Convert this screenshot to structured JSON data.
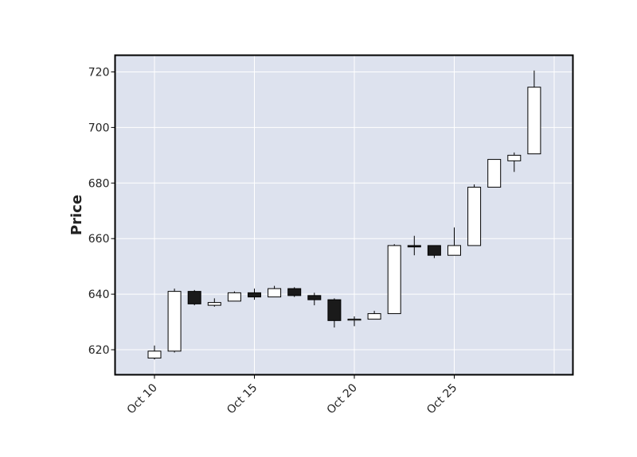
{
  "chart_data": {
    "type": "candlestick",
    "title": "",
    "xlabel": "",
    "ylabel": "Price",
    "ylim": [
      611,
      726
    ],
    "y_ticks": [
      620,
      640,
      660,
      680,
      700,
      720
    ],
    "x_ticks": [
      {
        "label": "Oct 10",
        "index": 0
      },
      {
        "label": "Oct 15",
        "index": 5
      },
      {
        "label": "Oct 20",
        "index": 10
      },
      {
        "label": "Oct 25",
        "index": 15
      }
    ],
    "grid": true,
    "colors": {
      "background": "#dde2ee",
      "grid": "#ffffff",
      "up_fill": "#ffffff",
      "down_fill": "#1a1a1a",
      "edge": "#000000"
    },
    "candles": [
      {
        "date": "Oct 10",
        "open": 617.0,
        "high": 621.5,
        "low": 616.5,
        "close": 619.5
      },
      {
        "date": "Oct 11",
        "open": 619.5,
        "high": 642.0,
        "low": 619.0,
        "close": 641.0
      },
      {
        "date": "Oct 12",
        "open": 641.0,
        "high": 641.5,
        "low": 636.0,
        "close": 636.5
      },
      {
        "date": "Oct 13",
        "open": 636.0,
        "high": 638.5,
        "low": 635.5,
        "close": 637.0
      },
      {
        "date": "Oct 14",
        "open": 637.5,
        "high": 641.0,
        "low": 637.5,
        "close": 640.5
      },
      {
        "date": "Oct 15",
        "open": 640.5,
        "high": 642.0,
        "low": 638.0,
        "close": 639.0
      },
      {
        "date": "Oct 16",
        "open": 639.0,
        "high": 643.0,
        "low": 639.0,
        "close": 642.0
      },
      {
        "date": "Oct 17",
        "open": 642.0,
        "high": 642.5,
        "low": 639.0,
        "close": 639.5
      },
      {
        "date": "Oct 18",
        "open": 639.5,
        "high": 640.5,
        "low": 636.0,
        "close": 638.0
      },
      {
        "date": "Oct 19",
        "open": 638.0,
        "high": 638.5,
        "low": 628.0,
        "close": 630.5
      },
      {
        "date": "Oct 20",
        "open": 631.0,
        "high": 632.0,
        "low": 628.5,
        "close": 631.0
      },
      {
        "date": "Oct 21",
        "open": 631.0,
        "high": 634.0,
        "low": 631.0,
        "close": 633.0
      },
      {
        "date": "Oct 22",
        "open": 633.0,
        "high": 658.0,
        "low": 633.0,
        "close": 657.5
      },
      {
        "date": "Oct 23",
        "open": 657.5,
        "high": 661.0,
        "low": 654.0,
        "close": 657.0
      },
      {
        "date": "Oct 24",
        "open": 657.5,
        "high": 657.5,
        "low": 653.0,
        "close": 654.0
      },
      {
        "date": "Oct 25",
        "open": 654.0,
        "high": 664.0,
        "low": 654.0,
        "close": 657.5
      },
      {
        "date": "Oct 26",
        "open": 657.5,
        "high": 679.5,
        "low": 657.5,
        "close": 678.5
      },
      {
        "date": "Oct 27",
        "open": 678.5,
        "high": 688.5,
        "low": 678.5,
        "close": 688.5
      },
      {
        "date": "Oct 28",
        "open": 688.0,
        "high": 691.0,
        "low": 684.0,
        "close": 690.0
      },
      {
        "date": "Oct 29",
        "open": 690.5,
        "high": 720.5,
        "low": 690.5,
        "close": 714.5
      }
    ]
  }
}
